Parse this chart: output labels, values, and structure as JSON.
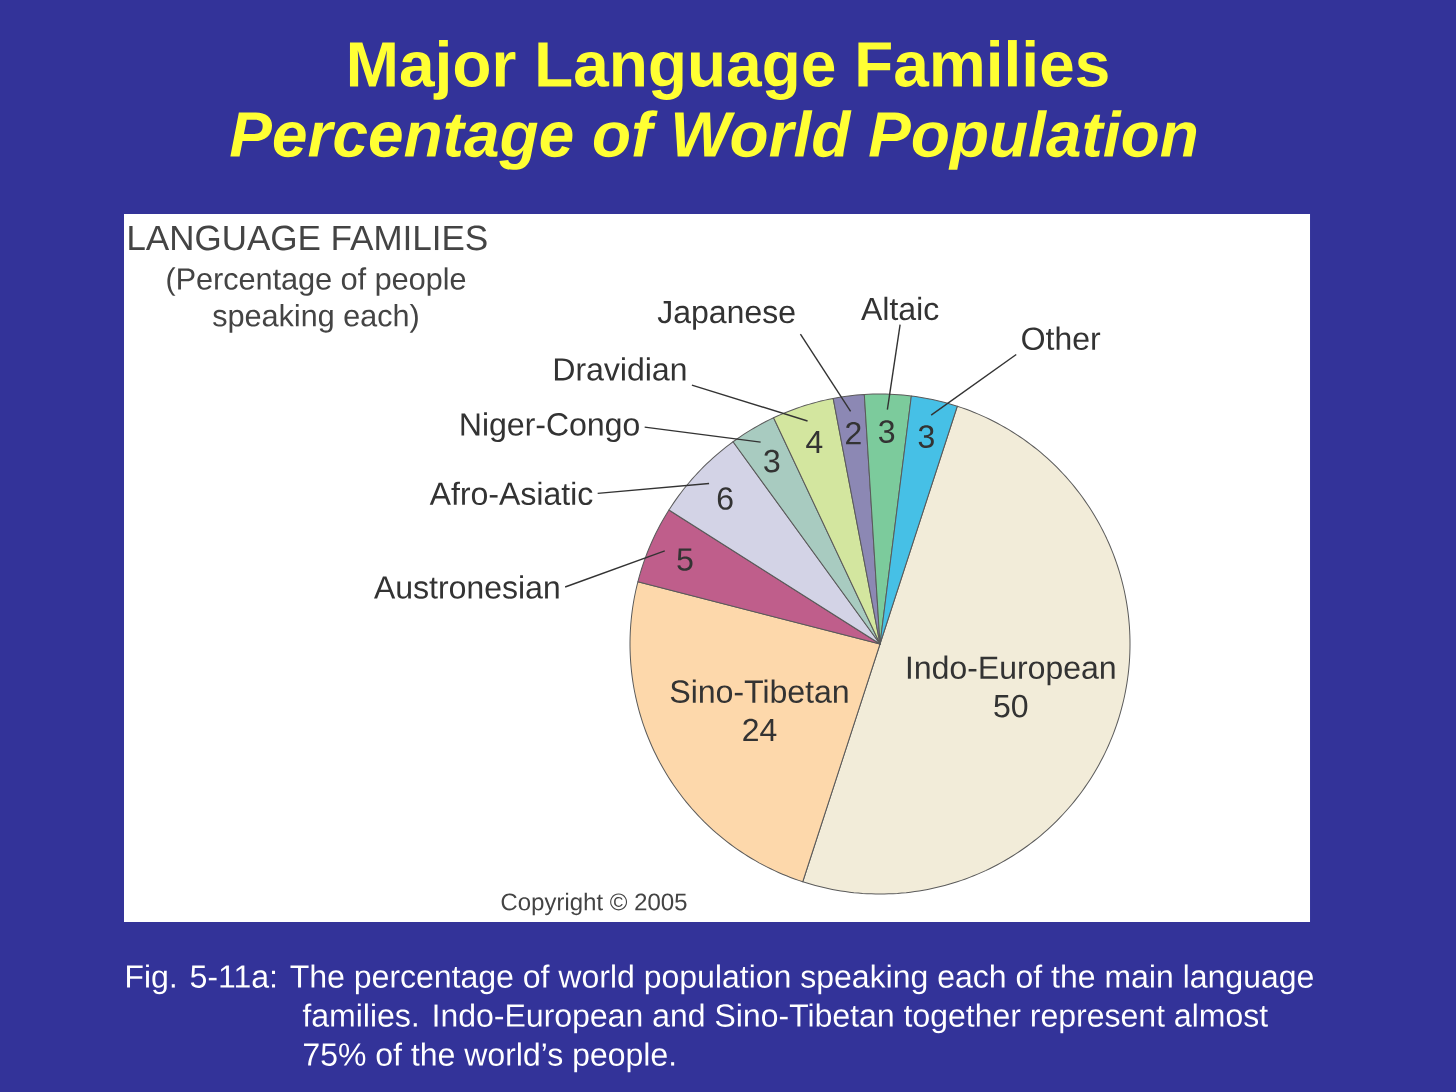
{
  "chart_data": {
    "type": "pie",
    "title": "Major Language Families",
    "subtitle": "Percentage of World Population",
    "categories": [
      "Indo-European",
      "Sino-Tibetan",
      "Austronesian",
      "Afro-Asiatic",
      "Niger-Congo",
      "Dravidian",
      "Japanese",
      "Altaic",
      "Other"
    ],
    "values": [
      50,
      24,
      5,
      6,
      3,
      4,
      2,
      3,
      3
    ],
    "colors": [
      "#f2ecd9",
      "#fdd8ab",
      "#bf5e8b",
      "#d3d3e6",
      "#a8cbc0",
      "#d3e69f",
      "#8c88b4",
      "#7ccb9c",
      "#46c0e6"
    ],
    "data_labels": true,
    "annotations": [
      "LANGUAGE FAMILIES",
      "(Percentage of people speaking each)",
      "Copyright © 2005",
      "Fig. 5-11a: The percentage of world population speaking each of the main language families. Indo-European and Sino-Tibetan together represent almost 75% of the world’s people."
    ]
  }
}
